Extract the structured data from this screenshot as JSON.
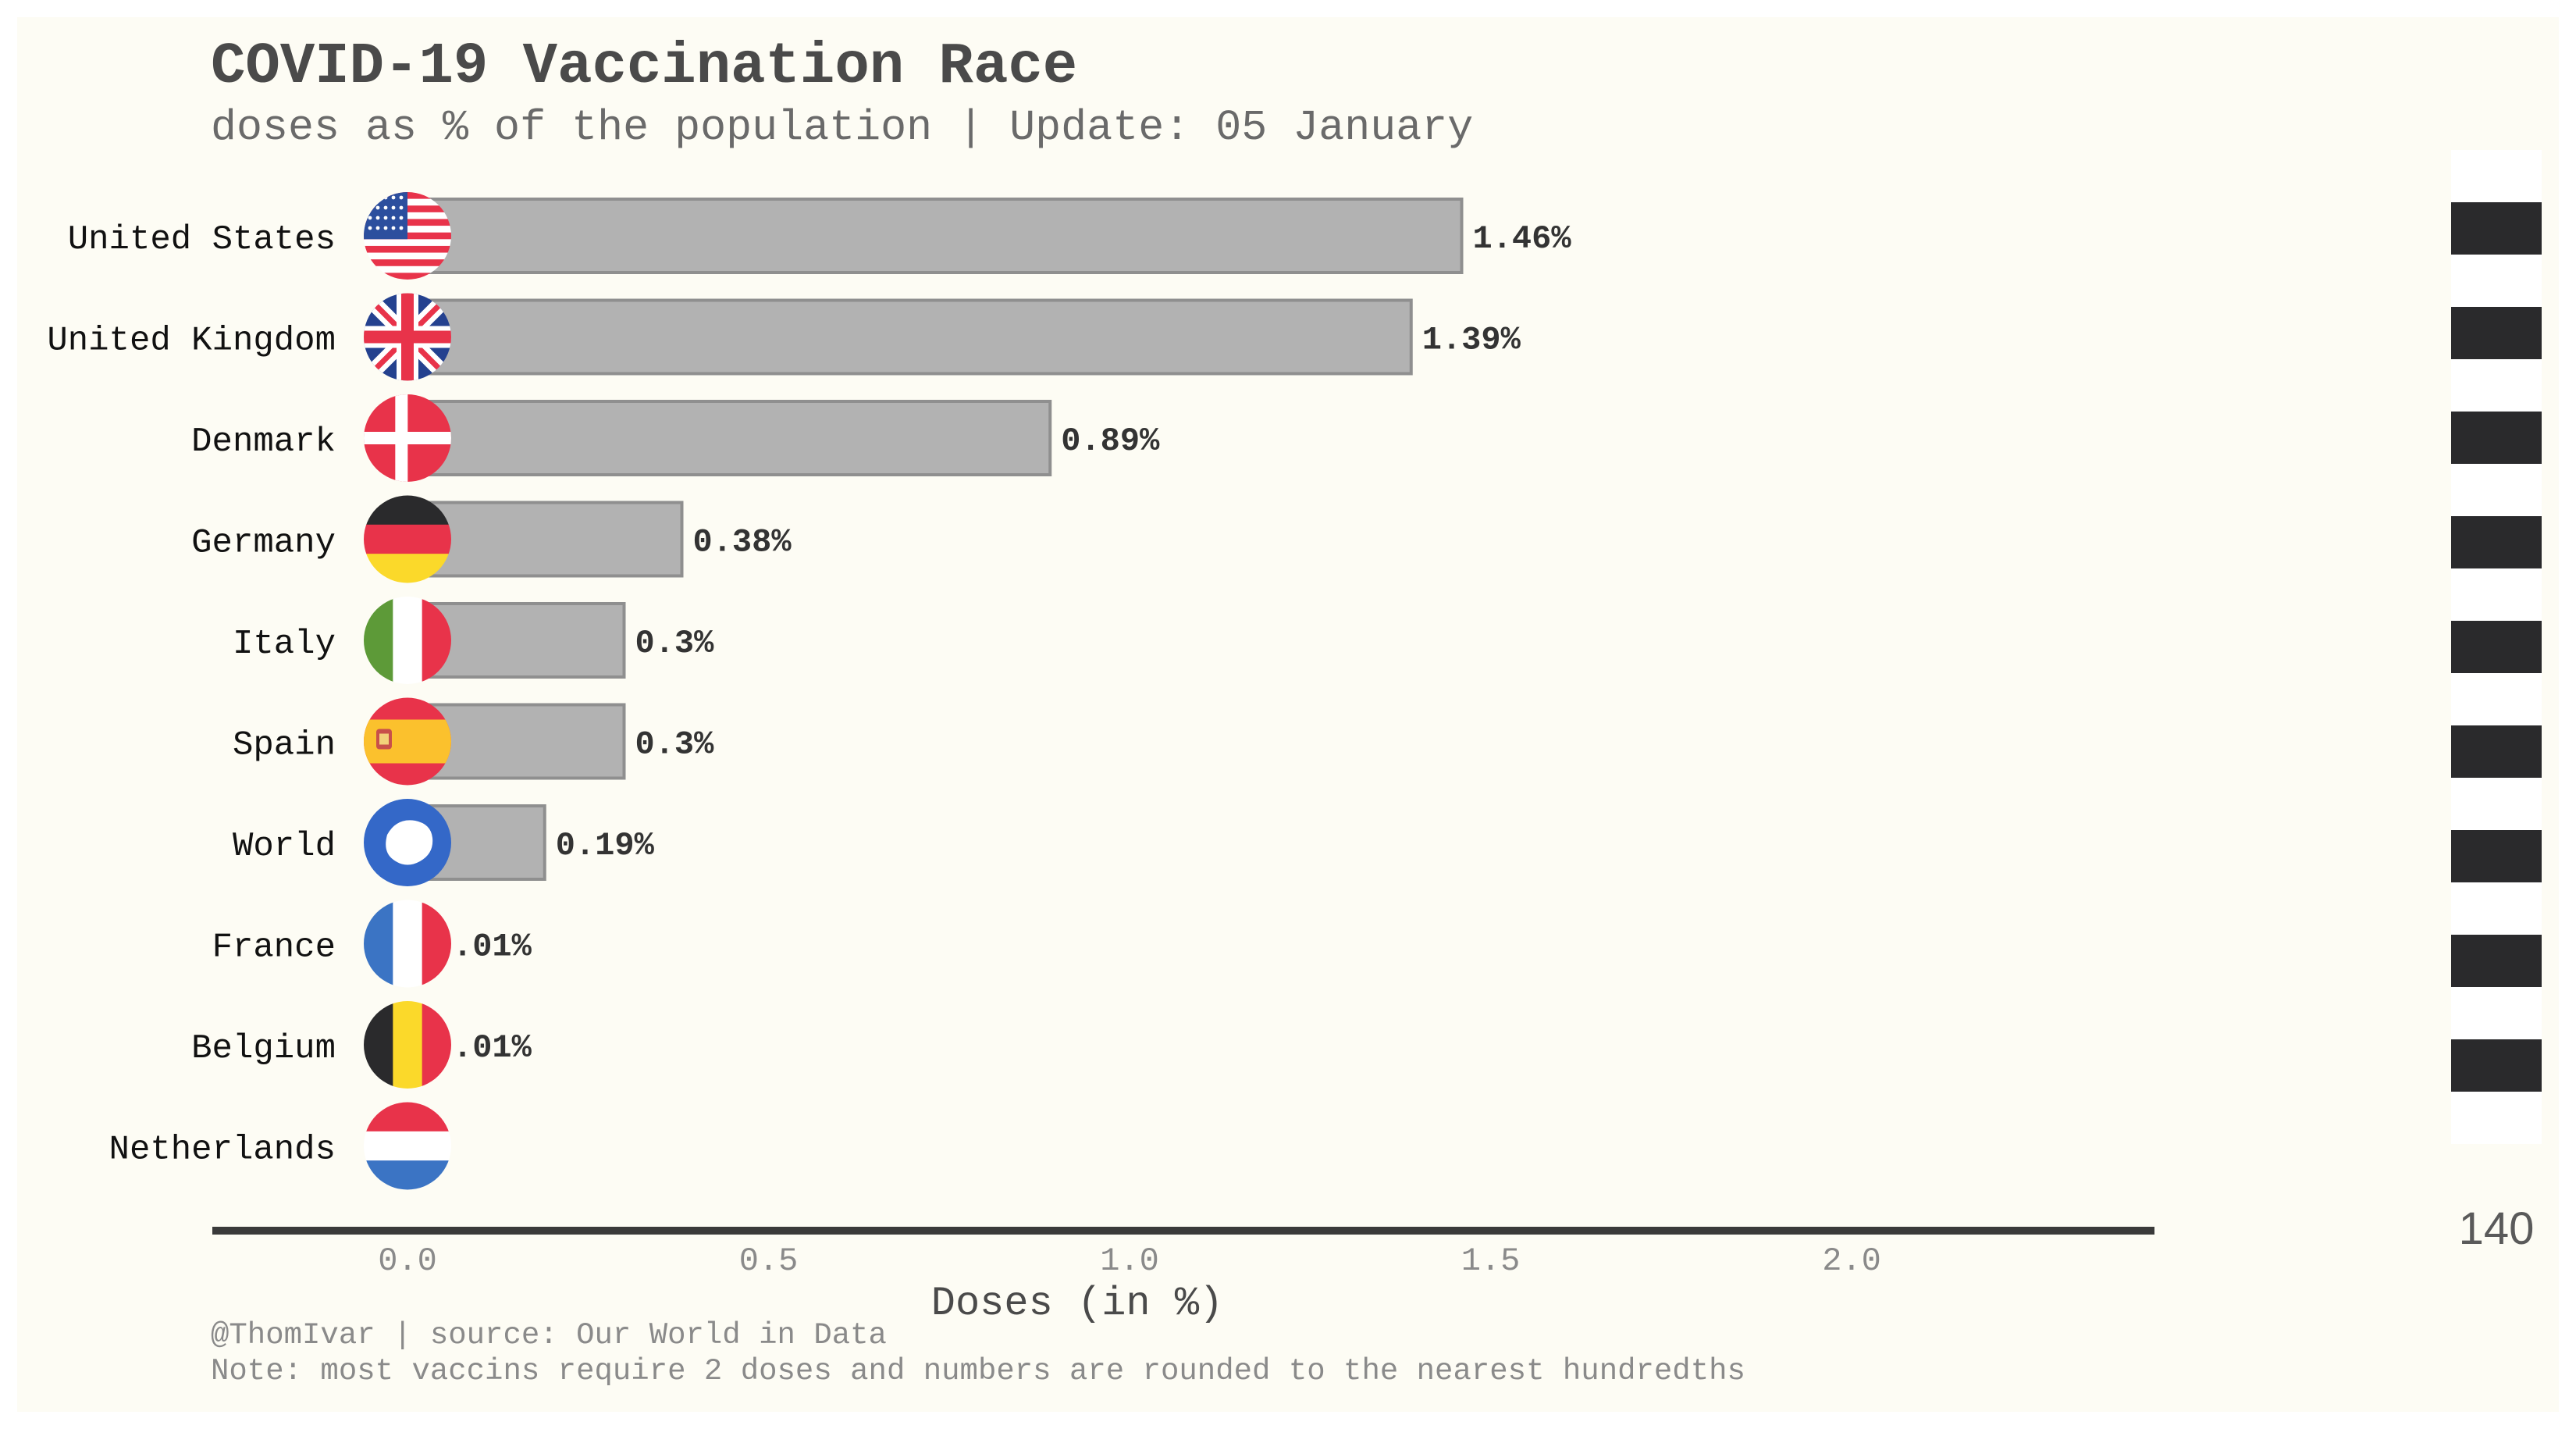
{
  "title": "COVID-19 Vaccination Race",
  "subtitle": "doses as % of the population | Update: 05 January",
  "footer": {
    "credit": "@ThomIvar | source: Our World in Data",
    "note": "Note: most vaccins require 2 doses and numbers are rounded to the nearest hundredths"
  },
  "counter": "140",
  "chart_data": {
    "type": "bar",
    "orientation": "horizontal",
    "xlabel": "Doses (in %)",
    "xlim": [
      -0.27,
      2.43
    ],
    "xticks": [
      0.0,
      0.5,
      1.0,
      1.5,
      2.0
    ],
    "xtick_labels": [
      "0.0",
      "0.5",
      "1.0",
      "1.5",
      "2.0"
    ],
    "categories": [
      "United States",
      "United Kingdom",
      "Denmark",
      "Germany",
      "Italy",
      "Spain",
      "World",
      "France",
      "Belgium",
      "Netherlands"
    ],
    "values": [
      1.46,
      1.39,
      0.89,
      0.38,
      0.3,
      0.3,
      0.19,
      0.01,
      0.01,
      0.0
    ],
    "data_labels": [
      "1.46%",
      "1.39%",
      "0.89%",
      "0.38%",
      "0.3%",
      "0.3%",
      "0.19%",
      ".01%",
      ".01%",
      ""
    ],
    "flags": [
      "us-flag-icon",
      "uk-flag-icon",
      "denmark-flag-icon",
      "germany-flag-icon",
      "italy-flag-icon",
      "spain-flag-icon",
      "world-flag-icon",
      "france-flag-icon",
      "belgium-flag-icon",
      "netherlands-flag-icon"
    ],
    "grid": false,
    "legend": "none",
    "colors": {
      "bar_fill": "#b2b2b2",
      "bar_edge": "#8f8f8f",
      "axis": "#3a3a3a",
      "background": "#fdfcf4"
    }
  }
}
